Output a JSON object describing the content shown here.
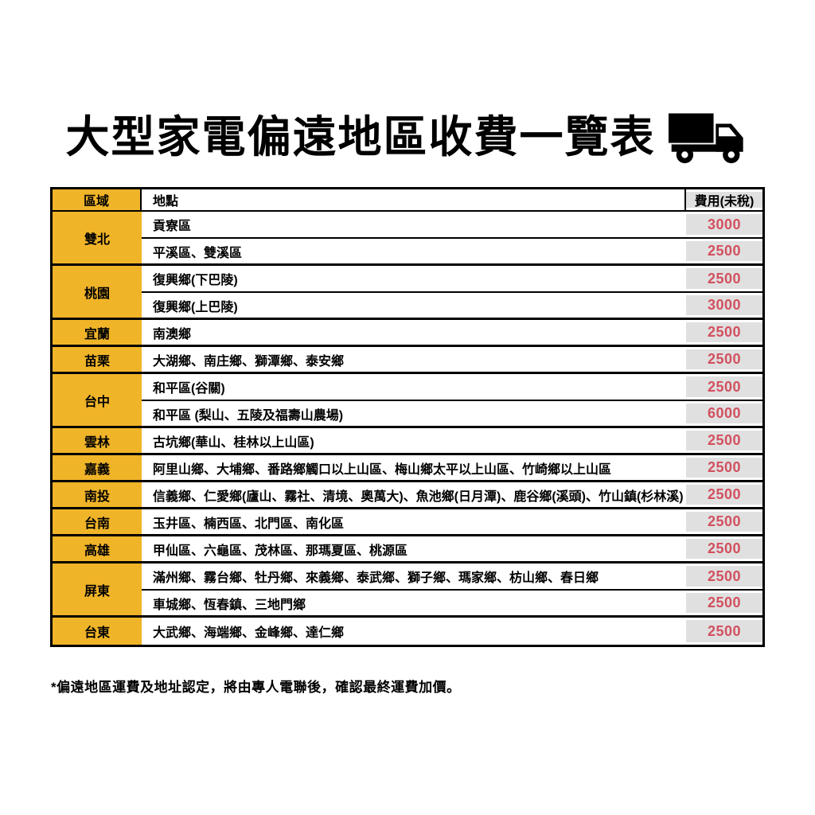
{
  "title": "大型家電偏遠地區收費一覽表",
  "icons": {
    "title_icon": "truck-icon"
  },
  "table": {
    "headers": {
      "region": "區域",
      "location": "地點",
      "fee": "費用(未稅)"
    },
    "groups": [
      {
        "region": "雙北",
        "rows": [
          {
            "location": "貢寮區",
            "fee": "3000"
          },
          {
            "location": "平溪區、雙溪區",
            "fee": "2500"
          }
        ]
      },
      {
        "region": "桃園",
        "rows": [
          {
            "location": "復興鄉(下巴陵)",
            "fee": "2500"
          },
          {
            "location": "復興鄉(上巴陵)",
            "fee": "3000"
          }
        ]
      },
      {
        "region": "宜蘭",
        "rows": [
          {
            "location": "南澳鄉",
            "fee": "2500"
          }
        ]
      },
      {
        "region": "苗栗",
        "rows": [
          {
            "location": "大湖鄉、南庄鄉、獅潭鄉、泰安鄉",
            "fee": "2500"
          }
        ]
      },
      {
        "region": "台中",
        "rows": [
          {
            "location": "和平區(谷關)",
            "fee": "2500"
          },
          {
            "location": "和平區 (梨山、五陵及福壽山農場)",
            "fee": "6000"
          }
        ]
      },
      {
        "region": "雲林",
        "rows": [
          {
            "location": "古坑鄉(華山、桂林以上山區)",
            "fee": "2500"
          }
        ]
      },
      {
        "region": "嘉義",
        "rows": [
          {
            "location": "阿里山鄉、大埔鄉、番路鄉觸口以上山區、梅山鄉太平以上山區、竹崎鄉以上山區",
            "fee": "2500"
          }
        ]
      },
      {
        "region": "南投",
        "rows": [
          {
            "location": "信義鄉、仁愛鄉(廬山、霧社、清境、奧萬大)、魚池鄉(日月潭)、鹿谷鄉(溪頭)、竹山鎮(杉林溪)",
            "fee": "2500"
          }
        ]
      },
      {
        "region": "台南",
        "rows": [
          {
            "location": "玉井區、楠西區、北門區、南化區",
            "fee": "2500"
          }
        ]
      },
      {
        "region": "高雄",
        "rows": [
          {
            "location": "甲仙區、六龜區、茂林區、那瑪夏區、桃源區",
            "fee": "2500"
          }
        ]
      },
      {
        "region": "屏東",
        "rows": [
          {
            "location": "滿州鄉、霧台鄉、牡丹鄉、來義鄉、泰武鄉、獅子鄉、瑪家鄉、枋山鄉、春日鄉",
            "fee": "2500"
          },
          {
            "location": "車城鄉、恆春鎮、三地門鄉",
            "fee": "2500"
          }
        ]
      },
      {
        "region": "台東",
        "rows": [
          {
            "location": "大武鄉、海端鄉、金峰鄉、達仁鄉",
            "fee": "2500"
          }
        ]
      }
    ]
  },
  "footnote": "*偏遠地區運費及地址認定，將由專人電聯後，確認最終運費加價。",
  "colors": {
    "region_bg": "#F0B428",
    "fee_bg": "#E0E0E0",
    "fee_text": "#D2505F",
    "border": "#000000",
    "text": "#000000"
  }
}
